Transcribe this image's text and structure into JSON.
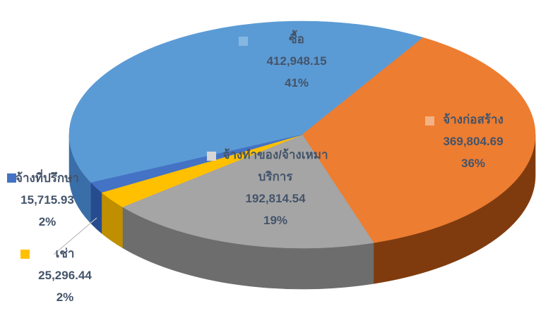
{
  "chart_data": {
    "type": "pie",
    "is_3d": true,
    "title": "",
    "background": "#FFFFFF",
    "label_text_color": "#44546A",
    "legend_position": "none",
    "start_angle_deg": -115,
    "total": 1016579.75,
    "slices": [
      {
        "label": "ซื้อ",
        "value": 412948.15,
        "value_text": "412,948.15",
        "pct_text": "41%",
        "color": "#5B9BD5",
        "side_color": "#3A6EA8",
        "marker_color": "#85B8E1",
        "label_placement": "inside"
      },
      {
        "label": "จ้างก่อสร้าง",
        "value": 369804.69,
        "value_text": "369,804.69",
        "pct_text": "36%",
        "color": "#ED7D31",
        "side_color": "#7F3B0E",
        "marker_color": "#F4B183",
        "label_placement": "inside"
      },
      {
        "label": "จ้างทำของ/จ้างเหมาบริการ",
        "label_lines": [
          "จ้างทำของ/จ้างเหมา",
          "บริการ"
        ],
        "value": 192814.54,
        "value_text": "192,814.54",
        "pct_text": "19%",
        "color": "#A5A5A5",
        "side_color": "#6D6D6D",
        "marker_color": "#D6D6D6",
        "label_placement": "inside"
      },
      {
        "label": "เช่า",
        "value": 25296.44,
        "value_text": "25,296.44",
        "pct_text": "2%",
        "color": "#FFC000",
        "side_color": "#BF8F00",
        "marker_color": "#FFC000",
        "label_placement": "outside",
        "has_leader_line": true
      },
      {
        "label": "จ้างที่ปรึกษา",
        "value": 15715.93,
        "value_text": "15,715.93",
        "pct_text": "2%",
        "color": "#4472C4",
        "side_color": "#264C8F",
        "marker_color": "#4472C4",
        "label_placement": "outside"
      }
    ]
  }
}
